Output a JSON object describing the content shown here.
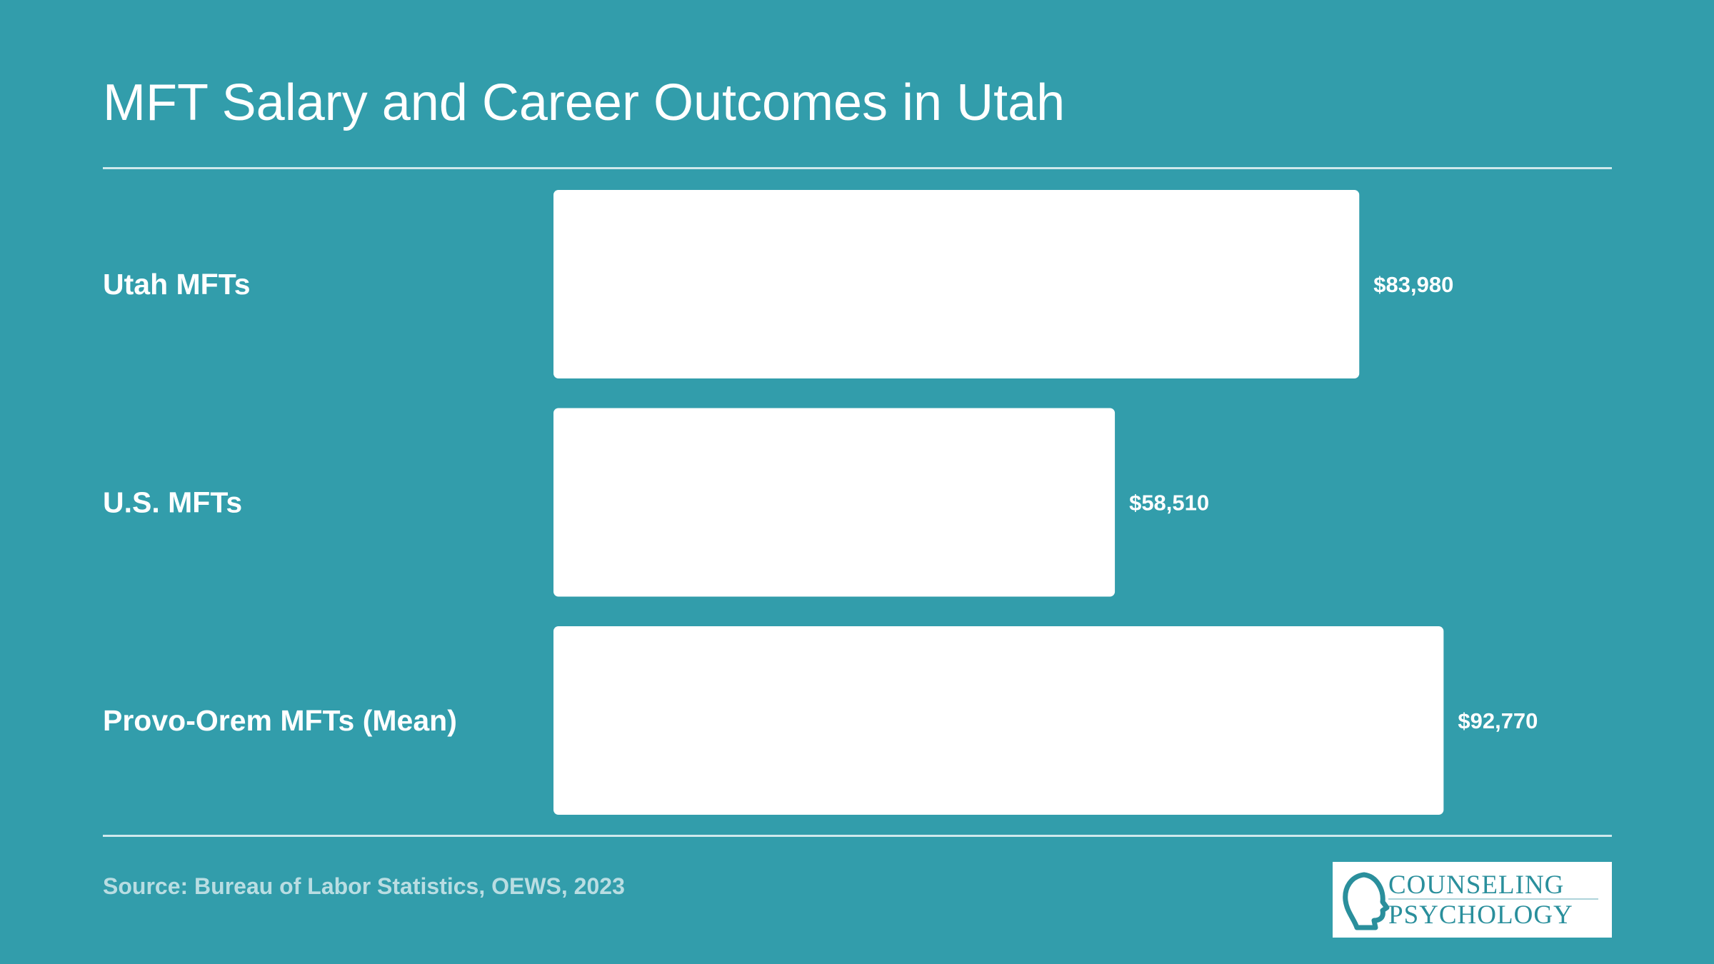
{
  "header": {
    "title": "MFT Salary and Career Outcomes in Utah"
  },
  "chart_data": {
    "type": "bar",
    "orientation": "horizontal",
    "title": "MFT Salary and Career Outcomes in Utah",
    "categories": [
      "Utah MFTs",
      "U.S. MFTs",
      "Provo-Orem MFTs (Mean)"
    ],
    "values": [
      83980,
      58510,
      92770
    ],
    "value_labels": [
      "$83,980",
      "$58,510",
      "$92,770"
    ],
    "xlim": [
      0,
      100000
    ],
    "grid": false,
    "bar_color": "#ffffff"
  },
  "footer": {
    "source": "Source: Bureau of Labor Statistics, OEWS, 2023",
    "logo": {
      "line1": "COUNSELING",
      "line2": "PSYCHOLOGY"
    }
  },
  "colors": {
    "background": "#329dab",
    "bars": "#ffffff",
    "source_text": "#b9dde2",
    "logo_text": "#2a8f9c"
  }
}
